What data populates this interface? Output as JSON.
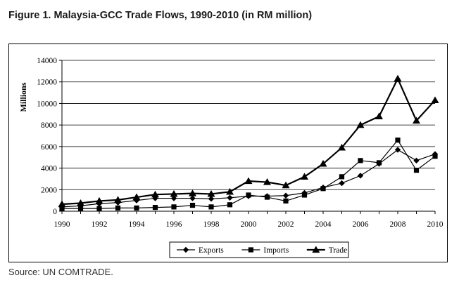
{
  "figure_title": "Figure 1. Malaysia-GCC Trade Flows, 1990-2010 (in RM million)",
  "source": "Source: UN COMTRADE.",
  "chart_data": {
    "type": "line",
    "title": "",
    "xlabel": "",
    "ylabel": "Millions",
    "x": [
      1990,
      1991,
      1992,
      1993,
      1994,
      1995,
      1996,
      1997,
      1998,
      1999,
      2000,
      2001,
      2002,
      2003,
      2004,
      2005,
      2006,
      2007,
      2008,
      2009,
      2010
    ],
    "x_tick_labels": [
      "1990",
      "1992",
      "1994",
      "1996",
      "1998",
      "2000",
      "2002",
      "2004",
      "2006",
      "2008",
      "2010"
    ],
    "y_tick_labels": [
      "0",
      "2000",
      "4000",
      "6000",
      "8000",
      "10000",
      "12000",
      "14000"
    ],
    "ylim": [
      0,
      14000
    ],
    "grid": "horizontal",
    "legend_position": "bottom",
    "series": [
      {
        "name": "Exports",
        "marker": "diamond",
        "values": [
          400,
          500,
          700,
          800,
          1000,
          1200,
          1200,
          1200,
          1150,
          1250,
          1400,
          1400,
          1450,
          1700,
          2200,
          2600,
          3300,
          4400,
          5700,
          4700,
          5300
        ]
      },
      {
        "name": "Imports",
        "marker": "square",
        "values": [
          250,
          250,
          250,
          300,
          300,
          350,
          400,
          550,
          400,
          600,
          1500,
          1300,
          950,
          1500,
          2100,
          3200,
          4700,
          4500,
          6600,
          3800,
          5100
        ]
      },
      {
        "name": "Trade",
        "marker": "triangle",
        "values": [
          650,
          750,
          950,
          1050,
          1300,
          1550,
          1600,
          1650,
          1600,
          1800,
          2800,
          2700,
          2400,
          3200,
          4400,
          5900,
          8000,
          8800,
          12300,
          8400,
          10300
        ]
      }
    ]
  }
}
